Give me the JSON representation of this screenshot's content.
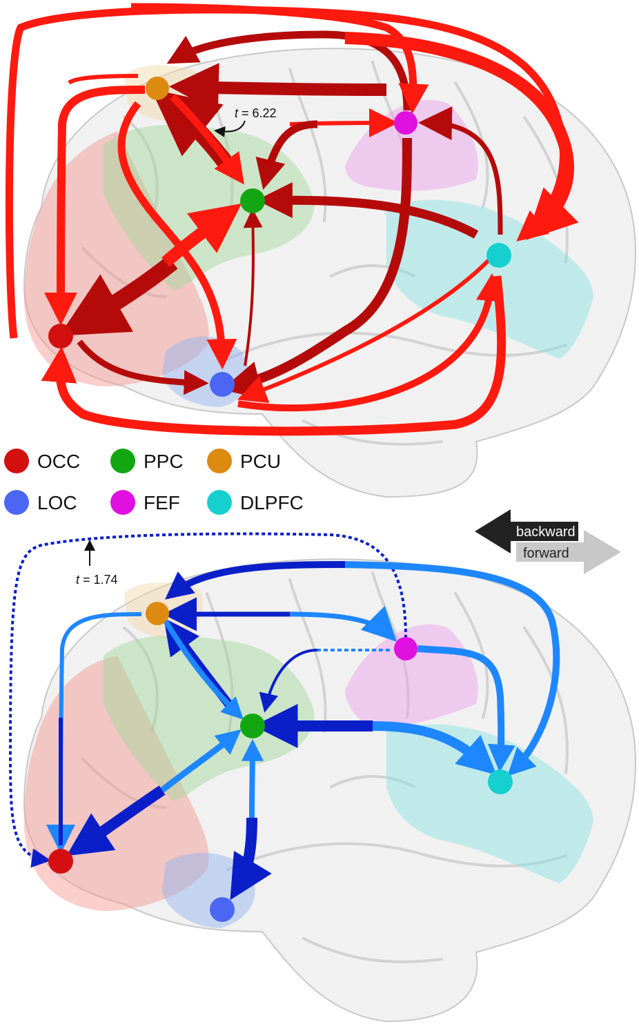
{
  "legend": {
    "items": [
      {
        "key": "OCC",
        "label": "OCC",
        "color": "#d40f0f"
      },
      {
        "key": "PPC",
        "label": "PPC",
        "color": "#12a612"
      },
      {
        "key": "PCU",
        "label": "PCU",
        "color": "#dc8a10"
      },
      {
        "key": "LOC",
        "label": "LOC",
        "color": "#4a66f2"
      },
      {
        "key": "FEF",
        "label": "FEF",
        "color": "#e010e0"
      },
      {
        "key": "DLPFC",
        "label": "DLPFC",
        "color": "#16cfcf"
      }
    ]
  },
  "region_colors": {
    "OCC": "#f2928c",
    "PPC": "#9fd79a",
    "PCU": "#f3d6a8",
    "LOC": "#8fb2f0",
    "FEF": "#ee9cee",
    "DLPFC": "#86e3e3"
  },
  "direction_legend": {
    "backward": "backward",
    "forward": "forward",
    "backward_color": "#222222",
    "forward_color": "#c8c8c8"
  },
  "top_panel": {
    "annotation": {
      "var": "t",
      "text": " = 6.22"
    },
    "backward_color": "#b40a0a",
    "forward_color": "#ff1a10"
  },
  "bottom_panel": {
    "annotation": {
      "var": "t",
      "text": " = 1.74"
    },
    "backward_color": "#0a1fc8",
    "forward_color": "#1e87ff"
  }
}
